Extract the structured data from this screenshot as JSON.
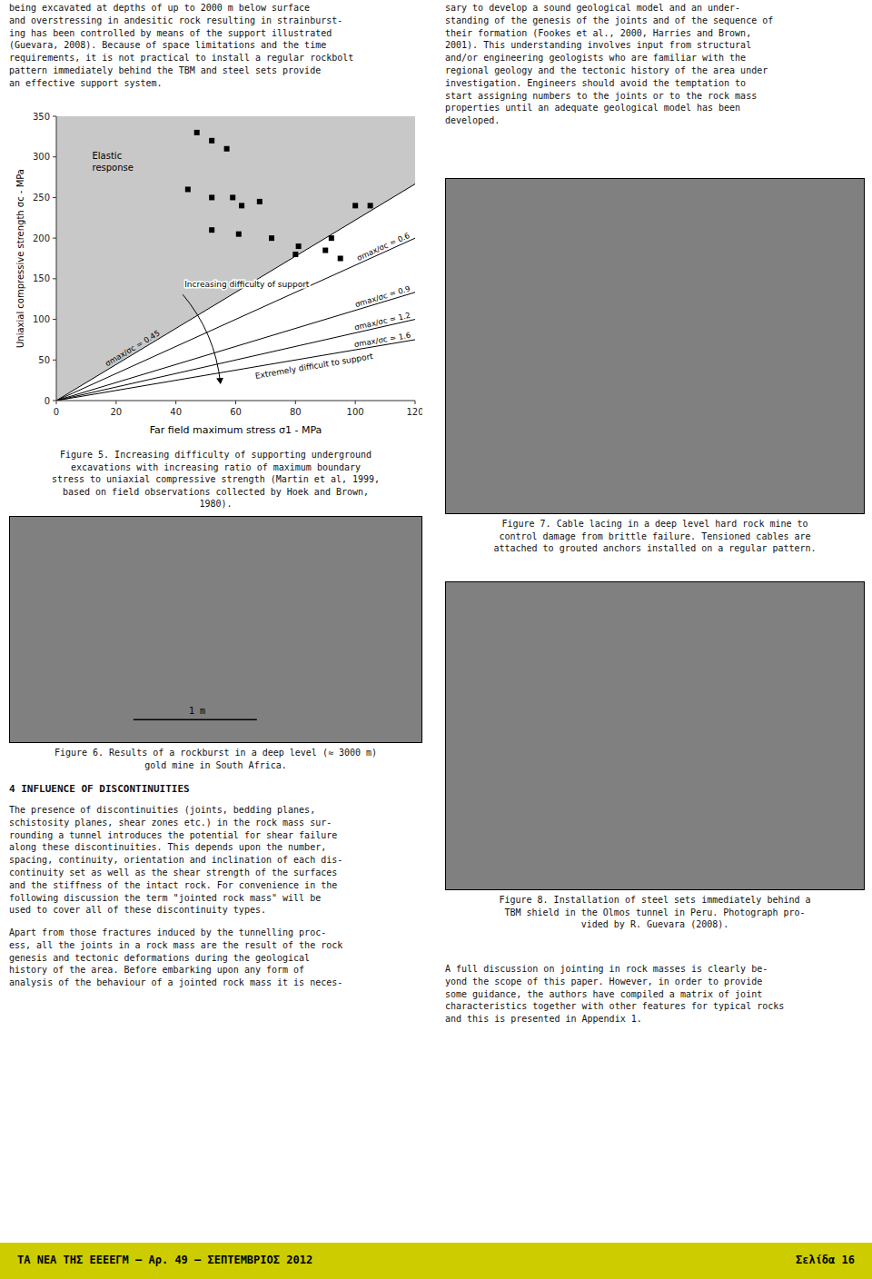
{
  "page_bg": "#ffffff",
  "footer_color": "#cccc00",
  "page_texts": {
    "left_col_text_top": "being excavated at depths of up to 2000 m below surface\nand overstressing in andesitic rock resulting in strainburst-\ning has been controlled by means of the support illustrated\n(Guevara, 2008). Because of space limitations and the time\nrequirements, it is not practical to install a regular rockbolt\npattern immediately behind the TBM and steel sets provide\nan effective support system.",
    "right_col_text_top": "sary to develop a sound geological model and an under-\nstanding of the genesis of the joints and of the sequence of\ntheir formation (Fookes et al., 2000, Harries and Brown,\n2001). This understanding involves input from structural\nand/or engineering geologists who are familiar with the\nregional geology and the tectonic history of the area under\ninvestigation. Engineers should avoid the temptation to\nstart assigning numbers to the joints or to the rock mass\nproperties until an adequate geological model has been\ndeveloped.",
    "fig5_caption": "Figure 5. Increasing difficulty of supporting underground\nexcavations with increasing ratio of maximum boundary\nstress to uniaxial compressive strength (Martin et al, 1999,\nbased on field observations collected by Hoek and Brown,\n1980).",
    "fig6_scale_label": "1 m",
    "fig6_caption": "Figure 6. Results of a rockburst in a deep level (≈ 3000 m)\ngold mine in South Africa.",
    "fig7_caption": "Figure 7. Cable lacing in a deep level hard rock mine to\ncontrol damage from brittle failure. Tensioned cables are\nattached to grouted anchors installed on a regular pattern.",
    "fig8_caption": "Figure 8. Installation of steel sets immediately behind a\nTBM shield in the Olmos tunnel in Peru. Photograph pro-\nvided by R. Guevara (2008).",
    "section_title": "4 INFLUENCE OF DISCONTINUITIES",
    "section_text1": "The presence of discontinuities (joints, bedding planes,\nschistosity planes, shear zones etc.) in the rock mass sur-\nrounding a tunnel introduces the potential for shear failure\nalong these discontinuities. This depends upon the number,\nspacing, continuity, orientation and inclination of each dis-\ncontinuity set as well as the shear strength of the surfaces\nand the stiffness of the intact rock. For convenience in the\nfollowing discussion the term \"jointed rock mass\" will be\nused to cover all of these discontinuity types.",
    "section_text2": "Apart from those fractures induced by the tunnelling proc-\ness, all the joints in a rock mass are the result of the rock\ngenesis and tectonic deformations during the geological\nhistory of the area. Before embarking upon any form of\nanalysis of the behaviour of a jointed rock mass it is neces-",
    "right_bottom_text": "A full discussion on jointing in rock masses is clearly be-\nyond the scope of this paper. However, in order to provide\nsome guidance, the authors have compiled a matrix of joint\ncharacteristics together with other features for typical rocks\nand this is presented in Appendix 1.",
    "footer_left": "ΤΑ ΝΕΑ ΤΗΣ ΕΕΕΕΓΜ – Αρ. 49 – ΣΕΠΤΕΜΒΡΙΟΣ 2012",
    "footer_right": "Σελίδα 16"
  },
  "chart_data": {
    "type": "scatter",
    "x_label": "Far field maximum stress σ1 - MPa",
    "y_label": "Uniaxial compressive strength σc - MPa",
    "x": [
      47,
      52,
      57,
      44,
      52,
      59,
      68,
      62,
      52,
      61,
      72,
      81,
      90,
      80,
      95,
      105,
      100,
      92
    ],
    "values": [
      330,
      320,
      310,
      260,
      250,
      250,
      245,
      240,
      210,
      205,
      200,
      190,
      185,
      180,
      175,
      240,
      240,
      200
    ],
    "marker": "square",
    "color": "#000000",
    "xlim": [
      0,
      120
    ],
    "ylim": [
      0,
      350
    ],
    "xticks": [
      0,
      20,
      40,
      60,
      80,
      100,
      120
    ],
    "yticks": [
      0,
      50,
      100,
      150,
      200,
      250,
      300,
      350
    ],
    "ratios": [
      0.45,
      0.6,
      0.9,
      1.2,
      1.6
    ],
    "ratio_labels": [
      "σmax/σc = 0.45",
      "σmax/σc = 0.6",
      "σmax/σc = 0.9",
      "σmax/σc = 1.2",
      "σmax/σc = 1.6"
    ],
    "annotations": [
      "Elastic\nresponse",
      "Increasing difficulty of support",
      "Extremely difficult to support"
    ],
    "grid": false
  }
}
